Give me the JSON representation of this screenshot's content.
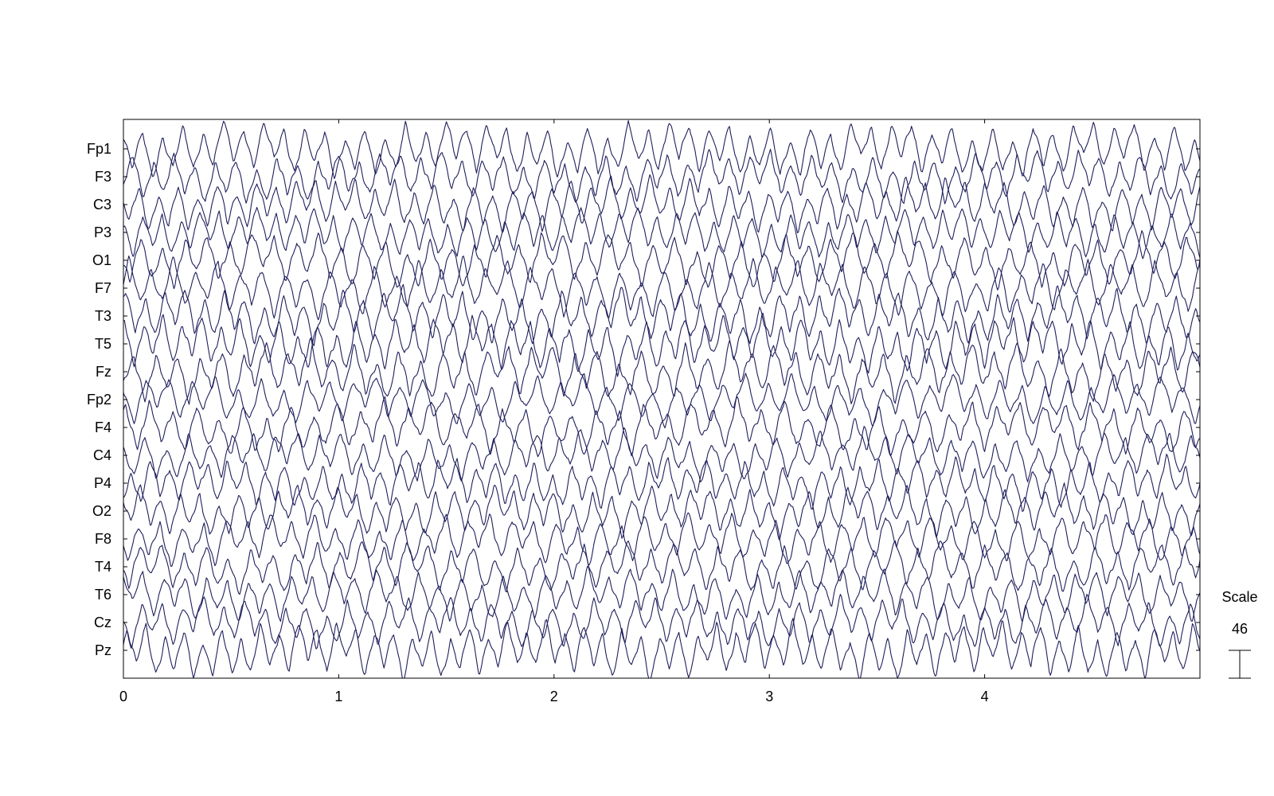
{
  "chart_data": {
    "type": "line",
    "title": "",
    "xlabel": "",
    "ylabel": "",
    "xlim": [
      0,
      5
    ],
    "x_ticks": [
      "0",
      "1",
      "2",
      "3",
      "4"
    ],
    "x_tick_values": [
      0,
      1,
      2,
      3,
      4
    ],
    "grid": false,
    "trace_color": "#1f1f5c",
    "channels": [
      "Fp1",
      "F3",
      "C3",
      "P3",
      "O1",
      "F7",
      "T3",
      "T5",
      "Fz",
      "Fp2",
      "F4",
      "C4",
      "P4",
      "O2",
      "F8",
      "T4",
      "T6",
      "Cz",
      "Pz"
    ],
    "scale": {
      "title": "Scale",
      "value": "46"
    }
  }
}
